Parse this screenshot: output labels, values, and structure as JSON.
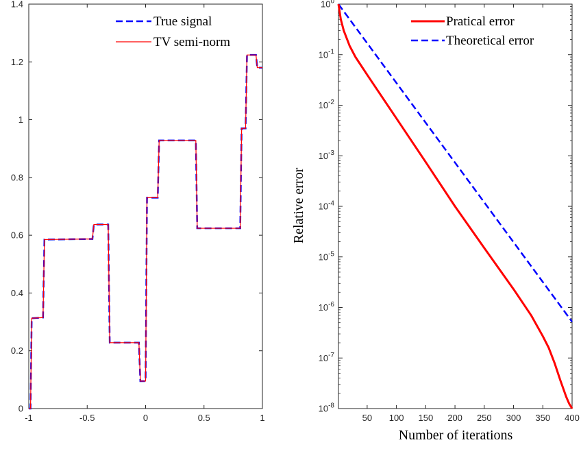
{
  "colors": {
    "true_signal": "#0000ff",
    "tv": "#ff0000",
    "practical": "#ff0000",
    "theoretical": "#0000ff",
    "axis": "#262626"
  },
  "chart_data": [
    {
      "type": "line",
      "xlim": [
        -1,
        1
      ],
      "ylim": [
        0,
        1.4
      ],
      "xticks": [
        "-1",
        "-0.5",
        "0",
        "0.5",
        "1"
      ],
      "yticks": [
        "0",
        "0.2",
        "0.4",
        "0.6",
        "0.8",
        "1",
        "1.2",
        "1.4"
      ],
      "xtick_values": [
        -1,
        -0.5,
        0,
        0.5,
        1
      ],
      "ytick_values": [
        0,
        0.2,
        0.4,
        0.6,
        0.8,
        1,
        1.2,
        1.4
      ],
      "grid": false,
      "legend_position": "top-right",
      "series": [
        {
          "name": "True signal",
          "style": "dashed",
          "x": [
            -1,
            -0.985,
            -0.975,
            -0.963,
            -0.878,
            -0.866,
            -0.455,
            -0.443,
            -0.32,
            -0.307,
            -0.057,
            -0.045,
            0.0,
            0.012,
            0.104,
            0.116,
            0.43,
            0.442,
            0.81,
            0.822,
            0.856,
            0.868,
            0.945,
            0.956,
            1.0
          ],
          "y": [
            0.0,
            0.0,
            0.313,
            0.313,
            0.315,
            0.585,
            0.587,
            0.637,
            0.637,
            0.228,
            0.228,
            0.095,
            0.095,
            0.73,
            0.73,
            0.928,
            0.928,
            0.624,
            0.624,
            0.97,
            0.97,
            1.224,
            1.224,
            1.18,
            1.18
          ]
        },
        {
          "name": "TV semi-norm",
          "style": "solid",
          "x": [
            -1,
            -0.985,
            -0.975,
            -0.963,
            -0.878,
            -0.866,
            -0.455,
            -0.443,
            -0.32,
            -0.307,
            -0.057,
            -0.045,
            0.0,
            0.012,
            0.104,
            0.116,
            0.43,
            0.442,
            0.81,
            0.822,
            0.856,
            0.868,
            0.945,
            0.956,
            1.0
          ],
          "y": [
            0.0,
            0.0,
            0.313,
            0.313,
            0.315,
            0.585,
            0.587,
            0.637,
            0.637,
            0.228,
            0.228,
            0.095,
            0.095,
            0.73,
            0.73,
            0.928,
            0.928,
            0.624,
            0.624,
            0.97,
            0.97,
            1.224,
            1.224,
            1.18,
            1.18
          ]
        }
      ]
    },
    {
      "type": "line",
      "yscale": "log",
      "xlim": [
        1,
        400
      ],
      "ylim": [
        1e-08,
        1
      ],
      "xlabel": "Number of iterations",
      "ylabel": "Relative error",
      "xticks": [
        "50",
        "100",
        "150",
        "200",
        "250",
        "300",
        "350",
        "400"
      ],
      "xtick_values": [
        50,
        100,
        150,
        200,
        250,
        300,
        350,
        400
      ],
      "yticks": [
        {
          "base": "10",
          "exp": "0"
        },
        {
          "base": "10",
          "exp": "-1"
        },
        {
          "base": "10",
          "exp": "-2"
        },
        {
          "base": "10",
          "exp": "-3"
        },
        {
          "base": "10",
          "exp": "-4"
        },
        {
          "base": "10",
          "exp": "-5"
        },
        {
          "base": "10",
          "exp": "-6"
        },
        {
          "base": "10",
          "exp": "-7"
        },
        {
          "base": "10",
          "exp": "-8"
        }
      ],
      "ytick_values": [
        1,
        0.1,
        0.01,
        0.001,
        0.0001,
        1e-05,
        1e-06,
        1e-07,
        1e-08
      ],
      "grid": false,
      "legend_position": "top-right",
      "series": [
        {
          "name": "Pratical error",
          "style": "solid",
          "x": [
            1,
            5,
            10,
            20,
            30,
            50,
            100,
            150,
            200,
            250,
            300,
            330,
            350,
            360,
            370,
            380,
            390,
            395,
            400
          ],
          "y": [
            1.0,
            0.5,
            0.3,
            0.15,
            0.09,
            0.04,
            0.0055,
            0.00075,
            0.0001,
            1.5e-05,
            2.3e-06,
            7e-07,
            2.7e-07,
            1.6e-07,
            8e-08,
            3.6e-08,
            1.7e-08,
            1.25e-08,
            1e-08
          ]
        },
        {
          "name": "Theoretical error",
          "style": "dashed",
          "x": [
            1,
            400
          ],
          "y": [
            1.0,
            5.2e-07
          ]
        }
      ]
    }
  ]
}
